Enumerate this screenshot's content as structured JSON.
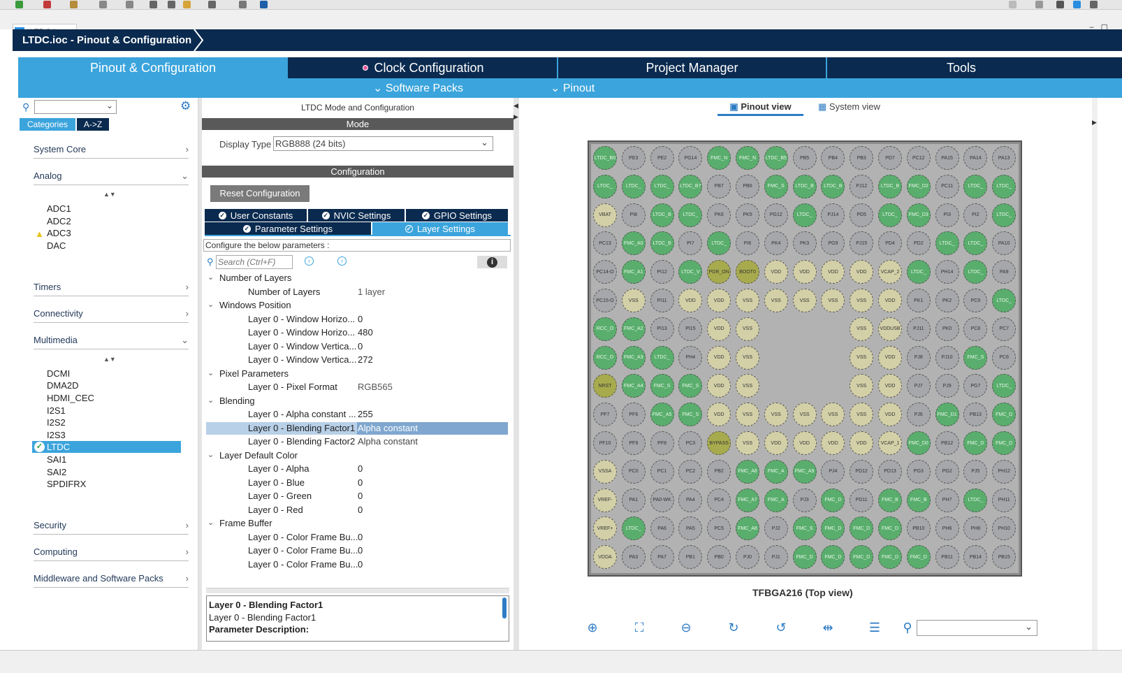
{
  "editor_tab": {
    "badge": "MX",
    "label": "*LTDC.ioc"
  },
  "title": "LTDC.ioc - Pinout & Configuration",
  "main_tabs": [
    "Pinout & Configuration",
    "Clock Configuration",
    "Project Manager",
    "Tools"
  ],
  "sub_bar": {
    "software_packs": "Software Packs",
    "pinout": "Pinout"
  },
  "left": {
    "tab_categories": "Categories",
    "tab_az": "A->Z",
    "categories": [
      {
        "label": "System Core",
        "state": "collapsed"
      },
      {
        "label": "Analog",
        "state": "expanded"
      },
      {
        "label": "Timers",
        "state": "collapsed"
      },
      {
        "label": "Connectivity",
        "state": "collapsed"
      },
      {
        "label": "Multimedia",
        "state": "expanded"
      },
      {
        "label": "Security",
        "state": "collapsed"
      },
      {
        "label": "Computing",
        "state": "collapsed"
      },
      {
        "label": "Middleware and Software Packs",
        "state": "collapsed"
      }
    ],
    "analog_items": [
      "ADC1",
      "ADC2",
      "ADC3",
      "DAC"
    ],
    "multimedia_items": [
      "DCMI",
      "DMA2D",
      "HDMI_CEC",
      "I2S1",
      "I2S2",
      "I2S3",
      "LTDC",
      "SAI1",
      "SAI2",
      "SPDIFRX"
    ],
    "selected_item": "LTDC"
  },
  "middle": {
    "panel_title": "LTDC Mode and Configuration",
    "mode_header": "Mode",
    "display_type_label": "Display Type",
    "display_type_value": "RGB888 (24 bits)",
    "config_header": "Configuration",
    "reset_button": "Reset Configuration",
    "tabs_row1": [
      "User Constants",
      "NVIC Settings",
      "GPIO Settings"
    ],
    "tabs_row2": [
      "Parameter Settings",
      "Layer Settings"
    ],
    "configure_text": "Configure the below parameters :",
    "search_placeholder": "Search (Ctrl+F)",
    "tree": [
      {
        "group": "Number of Layers",
        "items": [
          [
            "Number of Layers",
            "1 layer"
          ]
        ]
      },
      {
        "group": "Windows Position",
        "items": [
          [
            "Layer 0 - Window Horizo...",
            "0"
          ],
          [
            "Layer 0 - Window Horizo...",
            "480"
          ],
          [
            "Layer 0 - Window Vertica...",
            "0"
          ],
          [
            "Layer 0 - Window Vertica...",
            "272"
          ]
        ]
      },
      {
        "group": "Pixel Parameters",
        "items": [
          [
            "Layer 0 - Pixel Format",
            "RGB565"
          ]
        ]
      },
      {
        "group": "Blending",
        "items": [
          [
            "Layer 0 - Alpha constant ...",
            "255"
          ],
          [
            "Layer 0 - Blending Factor1",
            "Alpha constant"
          ],
          [
            "Layer 0 - Blending Factor2",
            "Alpha constant"
          ]
        ]
      },
      {
        "group": "Layer Default Color",
        "items": [
          [
            "Layer 0 - Alpha",
            "0"
          ],
          [
            "Layer 0 - Blue",
            "0"
          ],
          [
            "Layer 0 - Green",
            "0"
          ],
          [
            "Layer 0 - Red",
            "0"
          ]
        ]
      },
      {
        "group": "Frame Buffer",
        "items": [
          [
            "Layer 0 - Color Frame Bu...",
            "0"
          ],
          [
            "Layer 0 - Color Frame Bu...",
            "0"
          ],
          [
            "Layer 0 - Color Frame Bu...",
            "0"
          ]
        ]
      }
    ],
    "selected_row": "Layer 0 - Blending Factor1",
    "desc_title": "Layer 0 - Blending Factor1",
    "desc_line2": "Layer 0 - Blending Factor1",
    "desc_line3": "Parameter Description:"
  },
  "right": {
    "pinout_view": "Pinout view",
    "system_view": "System view",
    "package_label": "TFBGA216 (Top view)",
    "pin_rows": [
      [
        "LTDC_B0",
        "PE3",
        "PE2",
        "PG14",
        "FMC_N",
        "FMC_N",
        "LTDC_B5",
        "PB5",
        "PB4",
        "PB3",
        "PD7",
        "PC12",
        "PA15",
        "PA14",
        "PA13"
      ],
      [
        "LTDC_",
        "LTDC_",
        "LTDC_",
        "LTDC_B7",
        "PB7",
        "PB6",
        "FMC_S",
        "LTDC_B",
        "LTDC_B",
        "PJ12",
        "LTDC_B",
        "FMC_D2",
        "PC11",
        "LTDC_",
        "LTDC_"
      ],
      [
        "VBAT",
        "PI8",
        "LTDC_B",
        "LTDC_",
        "PK6",
        "PK5",
        "PG12",
        "LTDC_",
        "PJ14",
        "PD5",
        "LTDC_",
        "FMC_D3",
        "PI3",
        "PI2",
        "LTDC_"
      ],
      [
        "PC13",
        "FMC_A0",
        "LTDC_B",
        "PI7",
        "LTDC_",
        "PI6",
        "PK4",
        "PK3",
        "PG9",
        "PJ15",
        "PD4",
        "PD2",
        "LTDC_",
        "LTDC_",
        "PA10"
      ],
      [
        "PC14-O",
        "FMC_A1",
        "PI12",
        "LTDC_V",
        "PDR_ON",
        "BOOT0",
        "VDD",
        "VDD",
        "VDD",
        "VDD",
        "VCAP_2",
        "LTDC_",
        "PH14",
        "LTDC_",
        "PA9"
      ],
      [
        "PC15-O",
        "VSS",
        "PI11",
        "VDD",
        "VDD",
        "VSS",
        "VSS",
        "VSS",
        "VSS",
        "VSS",
        "VDD",
        "PK1",
        "PK2",
        "PC9",
        "LTDC_"
      ],
      [
        "RCC_O",
        "FMC_A2",
        "PI13",
        "PI15",
        "VDD",
        "VSS",
        "",
        "",
        "",
        "VSS",
        "VDDUSB",
        "PJ11",
        "PK0",
        "PC8",
        "PC7"
      ],
      [
        "RCC_O",
        "FMC_A3",
        "LTDC_",
        "PH4",
        "VDD",
        "VSS",
        "",
        "",
        "",
        "VSS",
        "VDD",
        "PJ8",
        "PJ10",
        "FMC_S",
        "PC6"
      ],
      [
        "NRST",
        "FMC_A4",
        "FMC_S",
        "FMC_S",
        "VDD",
        "VSS",
        "",
        "",
        "",
        "VSS",
        "VDD",
        "PJ7",
        "PJ9",
        "PG7",
        "LTDC_"
      ],
      [
        "PF7",
        "PF6",
        "FMC_A5",
        "FMC_S",
        "VDD",
        "VSS",
        "VSS",
        "VSS",
        "VSS",
        "VSS",
        "VDD",
        "PJ6",
        "FMC_D1",
        "PB13",
        "FMC_D"
      ],
      [
        "PF10",
        "PF9",
        "PF8",
        "PC3",
        "BYPASS",
        "VSS",
        "VDD",
        "VDD",
        "VDD",
        "VDD",
        "VCAP_1",
        "FMC_D0",
        "PB12",
        "FMC_D",
        "FMC_D"
      ],
      [
        "VSSA",
        "PC0",
        "PC1",
        "PC2",
        "PB2",
        "FMC_A6",
        "FMC_A",
        "FMC_A9",
        "PJ4",
        "PD12",
        "PD13",
        "PG3",
        "PG2",
        "PJ5",
        "PH12"
      ],
      [
        "VREF-",
        "PA1",
        "PA0-WK",
        "PA4",
        "PC4",
        "FMC_A7",
        "FMC_A",
        "PJ3",
        "FMC_D",
        "PD11",
        "FMC_B",
        "FMC_B",
        "PH7",
        "LTDC_",
        "PH11"
      ],
      [
        "VREF+",
        "LTDC_",
        "PA6",
        "PA5",
        "PC5",
        "FMC_A8",
        "PJ2",
        "FMC_S",
        "FMC_D",
        "FMC_D",
        "FMC_D",
        "PB10",
        "PH6",
        "PH8",
        "PH10"
      ],
      [
        "VDDA",
        "PA3",
        "PA7",
        "PB1",
        "PB0",
        "PJ0",
        "PJ1",
        "FMC_D",
        "FMC_D",
        "FMC_D",
        "FMC_D",
        "FMC_D",
        "PB11",
        "PB14",
        "PB15"
      ]
    ]
  }
}
